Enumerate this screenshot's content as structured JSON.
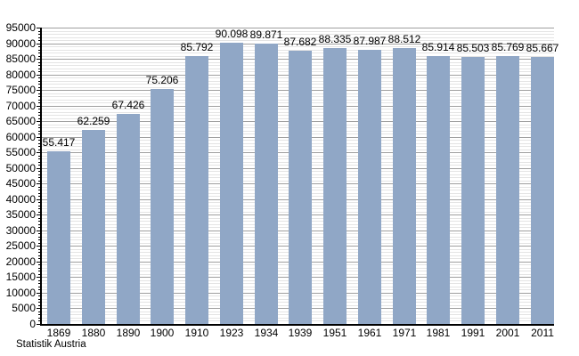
{
  "chart_data": {
    "type": "bar",
    "title": "",
    "source": "Statistik Austria",
    "categories": [
      "1869",
      "1880",
      "1890",
      "1900",
      "1910",
      "1923",
      "1934",
      "1939",
      "1951",
      "1961",
      "1971",
      "1981",
      "1991",
      "2001",
      "2011"
    ],
    "values": [
      55417,
      62259,
      67426,
      75206,
      85792,
      90098,
      89871,
      87682,
      88335,
      87987,
      88512,
      85914,
      85503,
      85769,
      85667
    ],
    "value_labels": [
      "55.417",
      "62.259",
      "67.426",
      "75.206",
      "85.792",
      "90.098",
      "89.871",
      "87.682",
      "88.335",
      "87.987",
      "88.512",
      "85.914",
      "85.503",
      "85.769",
      "85.667"
    ],
    "xlabel": "",
    "ylabel": "",
    "ylim": [
      0,
      95000
    ],
    "y_major_step": 5000,
    "y_minor_step": 1000,
    "y_tick_labels": [
      "0",
      "5000",
      "10000",
      "15000",
      "20000",
      "25000",
      "30000",
      "35000",
      "40000",
      "45000",
      "50000",
      "55000",
      "60000",
      "65000",
      "70000",
      "75000",
      "80000",
      "85000",
      "90000",
      "95000"
    ],
    "grid": true,
    "legend_position": "none",
    "colors": {
      "bar": "#90A7C6",
      "grid_major": "#9f9f9f",
      "grid_minor": "#e4e4e4",
      "axis": "#000000",
      "text": "#000000",
      "background": "#ffffff"
    }
  }
}
